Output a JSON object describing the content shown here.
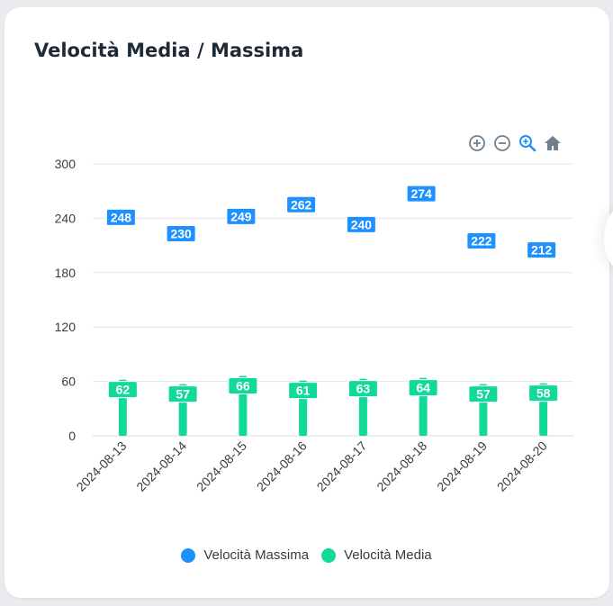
{
  "card": {
    "title": "Velocità Media / Massima"
  },
  "toolbar": {
    "zoom_in_icon": "plus-circle",
    "zoom_out_icon": "minus-circle",
    "zoom_select_icon": "magnifier",
    "reset_icon": "home"
  },
  "colors": {
    "max": "#1e90ff",
    "avg": "#10d99a",
    "grid": "#e3e6ea",
    "axis_text": "#373d3f"
  },
  "chart_data": {
    "type": "bar",
    "categories": [
      "2024-08-13",
      "2024-08-14",
      "2024-08-15",
      "2024-08-16",
      "2024-08-17",
      "2024-08-18",
      "2024-08-19",
      "2024-08-20"
    ],
    "ylim": [
      0,
      300
    ],
    "yticks": [
      0,
      60,
      120,
      180,
      240,
      300
    ],
    "grid": true,
    "legend_position": "bottom",
    "series": [
      {
        "name": "Velocità Massima",
        "values": [
          248,
          230,
          249,
          262,
          240,
          274,
          222,
          212
        ]
      },
      {
        "name": "Velocità Media",
        "values": [
          62,
          57,
          66,
          61,
          63,
          64,
          57,
          58
        ]
      }
    ]
  }
}
